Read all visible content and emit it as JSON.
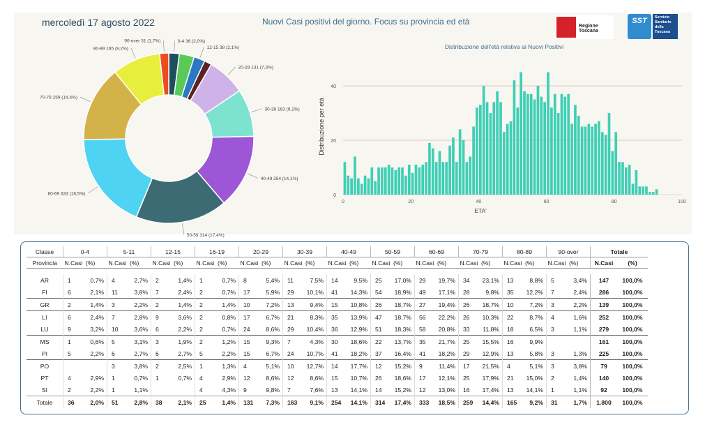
{
  "header": {
    "date": "mercoledì 17 agosto 2022",
    "title": "Nuovi Casi positivi del giorno. Focus su provincia ed età",
    "logo_regione": "Regione Toscana",
    "logo_sst_badge": "SST",
    "logo_sst_text": "Servizio Sanitario della Toscana"
  },
  "chart_data": [
    {
      "type": "pie",
      "donut": true,
      "categories": [
        "0-4",
        "5-11",
        "12-15",
        "16-19",
        "20-29",
        "30-39",
        "40-49",
        "50-59",
        "60-69",
        "70-79",
        "80-89",
        "90-over"
      ],
      "values": [
        36,
        51,
        38,
        25,
        131,
        163,
        254,
        314,
        333,
        259,
        165,
        31
      ],
      "percent_labels": [
        "2,0%",
        "2,8%",
        "2,1%",
        "1,4%",
        "7,3%",
        "9,1%",
        "14,1%",
        "17,4%",
        "18,5%",
        "14,4%",
        "9,2%",
        "1,7%"
      ],
      "slice_labels": [
        "0-4 36 (2,0%)",
        "",
        "12-15 38 (2,1%)",
        "",
        "20-29 131 (7,3%)",
        "30-39 163 (9,1%)",
        "40-49 254 (14,1%)",
        "50-59 314 (17,4%)",
        "60-69 333 (18,5%)",
        "70-79 259 (14,4%)",
        "80-89 165 (9,2%)",
        "90-over 31 (1,7%)"
      ],
      "colors": [
        "#1f4e5f",
        "#59c95a",
        "#2b78c4",
        "#5b2323",
        "#cfb3e8",
        "#7de3cf",
        "#9d57d6",
        "#3d6b73",
        "#4ed3f3",
        "#d4b24a",
        "#e8ee3c",
        "#ef4c1e"
      ]
    },
    {
      "type": "bar",
      "title": "Distribuzione dell'età relativa ai Nuovi Positivi",
      "xlabel": "ETA'",
      "ylabel": "Distribuzione per età",
      "xlim": [
        0,
        100
      ],
      "ylim": [
        0,
        50
      ],
      "xticks": [
        0,
        20,
        40,
        60,
        80,
        100
      ],
      "yticks": [
        0,
        20,
        40
      ],
      "grid": "horizontal",
      "color": "#3fcfb5",
      "x": [
        0,
        1,
        2,
        3,
        4,
        5,
        6,
        7,
        8,
        9,
        10,
        11,
        12,
        13,
        14,
        15,
        16,
        17,
        18,
        19,
        20,
        21,
        22,
        23,
        24,
        25,
        26,
        27,
        28,
        29,
        30,
        31,
        32,
        33,
        34,
        35,
        36,
        37,
        38,
        39,
        40,
        41,
        42,
        43,
        44,
        45,
        46,
        47,
        48,
        49,
        50,
        51,
        52,
        53,
        54,
        55,
        56,
        57,
        58,
        59,
        60,
        61,
        62,
        63,
        64,
        65,
        66,
        67,
        68,
        69,
        70,
        71,
        72,
        73,
        74,
        75,
        76,
        77,
        78,
        79,
        80,
        81,
        82,
        83,
        84,
        85,
        86,
        87,
        88,
        89,
        90,
        91,
        92,
        93,
        94,
        95,
        96,
        97,
        98,
        99
      ],
      "values": [
        12,
        7,
        6,
        14,
        6,
        4,
        7,
        6,
        10,
        5,
        10,
        10,
        10,
        11,
        10,
        9,
        10,
        10,
        7,
        11,
        8,
        11,
        10,
        11,
        12,
        19,
        17,
        12,
        16,
        12,
        12,
        18,
        21,
        12,
        24,
        20,
        12,
        14,
        25,
        32,
        33,
        40,
        34,
        30,
        34,
        38,
        34,
        23,
        26,
        27,
        42,
        32,
        45,
        38,
        37,
        37,
        35,
        40,
        36,
        34,
        45,
        32,
        37,
        30,
        37,
        36,
        37,
        26,
        33,
        29,
        25,
        25,
        26,
        25,
        26,
        27,
        23,
        22,
        30,
        16,
        23,
        12,
        12,
        10,
        11,
        4,
        9,
        3,
        3,
        3,
        1,
        1,
        2,
        0,
        0,
        0,
        0,
        0,
        0,
        0
      ]
    }
  ],
  "table": {
    "class_label": "Classe",
    "province_label": "Provincia",
    "groups": [
      "0-4",
      "5-11",
      "12-15",
      "16-19",
      "20-29",
      "30-39",
      "40-49",
      "50-59",
      "60-69",
      "70-79",
      "80-89",
      "90-over"
    ],
    "total_label": "Totale",
    "n_label": "N.Casi",
    "p_label": "(%)",
    "rows": [
      {
        "prov": "AR",
        "cells": [
          [
            "1",
            "0,7%"
          ],
          [
            "4",
            "2,7%"
          ],
          [
            "2",
            "1,4%"
          ],
          [
            "1",
            "0,7%"
          ],
          [
            "8",
            "5,4%"
          ],
          [
            "11",
            "7,5%"
          ],
          [
            "14",
            "9,5%"
          ],
          [
            "25",
            "17,0%"
          ],
          [
            "29",
            "19,7%"
          ],
          [
            "34",
            "23,1%"
          ],
          [
            "13",
            "8,8%"
          ],
          [
            "5",
            "3,4%"
          ]
        ],
        "tot": "147",
        "totp": "100,0%"
      },
      {
        "prov": "FI",
        "cells": [
          [
            "6",
            "2,1%"
          ],
          [
            "11",
            "3,8%"
          ],
          [
            "7",
            "2,4%"
          ],
          [
            "2",
            "0,7%"
          ],
          [
            "17",
            "5,9%"
          ],
          [
            "29",
            "10,1%"
          ],
          [
            "41",
            "14,3%"
          ],
          [
            "54",
            "18,9%"
          ],
          [
            "49",
            "17,1%"
          ],
          [
            "28",
            "9,8%"
          ],
          [
            "35",
            "12,2%"
          ],
          [
            "7",
            "2,4%"
          ]
        ],
        "tot": "286",
        "totp": "100,0%"
      },
      {
        "prov": "GR",
        "cells": [
          [
            "2",
            "1,4%"
          ],
          [
            "3",
            "2,2%"
          ],
          [
            "2",
            "1,4%"
          ],
          [
            "2",
            "1,4%"
          ],
          [
            "10",
            "7,2%"
          ],
          [
            "13",
            "9,4%"
          ],
          [
            "15",
            "10,8%"
          ],
          [
            "26",
            "18,7%"
          ],
          [
            "27",
            "19,4%"
          ],
          [
            "26",
            "18,7%"
          ],
          [
            "10",
            "7,2%"
          ],
          [
            "3",
            "2,2%"
          ]
        ],
        "tot": "139",
        "totp": "100,0%"
      },
      {
        "prov": "LI",
        "cells": [
          [
            "6",
            "2,4%"
          ],
          [
            "7",
            "2,8%"
          ],
          [
            "9",
            "3,6%"
          ],
          [
            "2",
            "0,8%"
          ],
          [
            "17",
            "6,7%"
          ],
          [
            "21",
            "8,3%"
          ],
          [
            "35",
            "13,9%"
          ],
          [
            "47",
            "18,7%"
          ],
          [
            "56",
            "22,2%"
          ],
          [
            "26",
            "10,3%"
          ],
          [
            "22",
            "8,7%"
          ],
          [
            "4",
            "1,6%"
          ]
        ],
        "tot": "252",
        "totp": "100,0%"
      },
      {
        "prov": "LU",
        "cells": [
          [
            "9",
            "3,2%"
          ],
          [
            "10",
            "3,6%"
          ],
          [
            "6",
            "2,2%"
          ],
          [
            "2",
            "0,7%"
          ],
          [
            "24",
            "8,6%"
          ],
          [
            "29",
            "10,4%"
          ],
          [
            "36",
            "12,9%"
          ],
          [
            "51",
            "18,3%"
          ],
          [
            "58",
            "20,8%"
          ],
          [
            "33",
            "11,8%"
          ],
          [
            "18",
            "6,5%"
          ],
          [
            "3",
            "1,1%"
          ]
        ],
        "tot": "279",
        "totp": "100,0%"
      },
      {
        "prov": "MS",
        "cells": [
          [
            "1",
            "0,6%"
          ],
          [
            "5",
            "3,1%"
          ],
          [
            "3",
            "1,9%"
          ],
          [
            "2",
            "1,2%"
          ],
          [
            "15",
            "9,3%"
          ],
          [
            "7",
            "4,3%"
          ],
          [
            "30",
            "18,6%"
          ],
          [
            "22",
            "13,7%"
          ],
          [
            "35",
            "21,7%"
          ],
          [
            "25",
            "15,5%"
          ],
          [
            "16",
            "9,9%"
          ],
          [
            "",
            ""
          ]
        ],
        "tot": "161",
        "totp": "100,0%"
      },
      {
        "prov": "PI",
        "cells": [
          [
            "5",
            "2,2%"
          ],
          [
            "6",
            "2,7%"
          ],
          [
            "6",
            "2,7%"
          ],
          [
            "5",
            "2,2%"
          ],
          [
            "15",
            "6,7%"
          ],
          [
            "24",
            "10,7%"
          ],
          [
            "41",
            "18,2%"
          ],
          [
            "37",
            "16,4%"
          ],
          [
            "41",
            "18,2%"
          ],
          [
            "29",
            "12,9%"
          ],
          [
            "13",
            "5,8%"
          ],
          [
            "3",
            "1,3%"
          ]
        ],
        "tot": "225",
        "totp": "100,0%"
      },
      {
        "prov": "PO",
        "cells": [
          [
            "",
            ""
          ],
          [
            "3",
            "3,8%"
          ],
          [
            "2",
            "2,5%"
          ],
          [
            "1",
            "1,3%"
          ],
          [
            "4",
            "5,1%"
          ],
          [
            "10",
            "12,7%"
          ],
          [
            "14",
            "17,7%"
          ],
          [
            "12",
            "15,2%"
          ],
          [
            "9",
            "11,4%"
          ],
          [
            "17",
            "21,5%"
          ],
          [
            "4",
            "5,1%"
          ],
          [
            "3",
            "3,8%"
          ]
        ],
        "tot": "79",
        "totp": "100,0%"
      },
      {
        "prov": "PT",
        "cells": [
          [
            "4",
            "2,9%"
          ],
          [
            "1",
            "0,7%"
          ],
          [
            "1",
            "0,7%"
          ],
          [
            "4",
            "2,9%"
          ],
          [
            "12",
            "8,6%"
          ],
          [
            "12",
            "8,6%"
          ],
          [
            "15",
            "10,7%"
          ],
          [
            "26",
            "18,6%"
          ],
          [
            "17",
            "12,1%"
          ],
          [
            "25",
            "17,9%"
          ],
          [
            "21",
            "15,0%"
          ],
          [
            "2",
            "1,4%"
          ]
        ],
        "tot": "140",
        "totp": "100,0%"
      },
      {
        "prov": "SI",
        "cells": [
          [
            "2",
            "2,2%"
          ],
          [
            "1",
            "1,1%"
          ],
          [
            "",
            ""
          ],
          [
            "4",
            "4,3%"
          ],
          [
            "9",
            "9,8%"
          ],
          [
            "7",
            "7,6%"
          ],
          [
            "13",
            "14,1%"
          ],
          [
            "14",
            "15,2%"
          ],
          [
            "12",
            "13,0%"
          ],
          [
            "16",
            "17,4%"
          ],
          [
            "13",
            "14,1%"
          ],
          [
            "1",
            "1,1%"
          ]
        ],
        "tot": "92",
        "totp": "100,0%"
      }
    ],
    "total_row": {
      "prov": "Totale",
      "cells": [
        [
          "36",
          "2,0%"
        ],
        [
          "51",
          "2,8%"
        ],
        [
          "38",
          "2,1%"
        ],
        [
          "25",
          "1,4%"
        ],
        [
          "131",
          "7,3%"
        ],
        [
          "163",
          "9,1%"
        ],
        [
          "254",
          "14,1%"
        ],
        [
          "314",
          "17,4%"
        ],
        [
          "333",
          "18,5%"
        ],
        [
          "259",
          "14,4%"
        ],
        [
          "165",
          "9,2%"
        ],
        [
          "31",
          "1,7%"
        ]
      ],
      "tot": "1.800",
      "totp": "100,0%"
    }
  }
}
